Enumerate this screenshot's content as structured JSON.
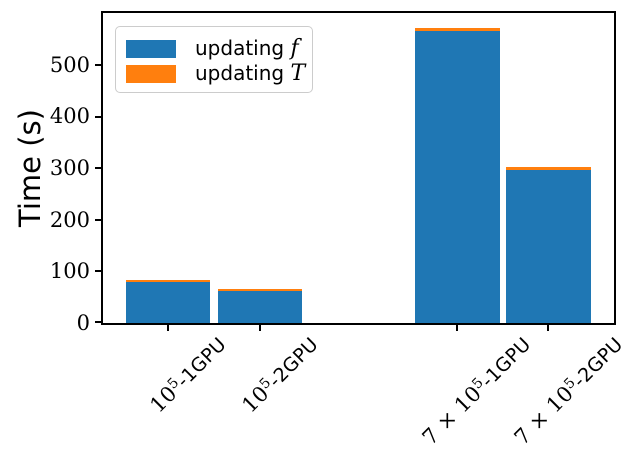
{
  "figure": {
    "background": "#ffffff",
    "axis_color": "#000000"
  },
  "chart_data": {
    "type": "bar",
    "stacked": true,
    "title": "",
    "xlabel": "",
    "ylabel": "Time (s)",
    "ylim": [
      0,
      600
    ],
    "yticks": [
      "0",
      "100",
      "200",
      "300",
      "400",
      "500"
    ],
    "grid": false,
    "legend_position": "upper left",
    "categories": [
      "10⁵-1GPU",
      "10⁵-2GPU",
      "7 × 10⁵-1GPU",
      "7 × 10⁵-2GPU"
    ],
    "categories_parts": [
      {
        "prefix": "",
        "base": "10",
        "sup": "5",
        "rest": "-1GPU"
      },
      {
        "prefix": "",
        "base": "10",
        "sup": "5",
        "rest": "-2GPU"
      },
      {
        "prefix": "7 × ",
        "base": "10",
        "sup": "5",
        "rest": "-1GPU"
      },
      {
        "prefix": "7 × ",
        "base": "10",
        "sup": "5",
        "rest": "-2GPU"
      }
    ],
    "series": [
      {
        "name": "updating f",
        "label_prefix": "updating ",
        "symbol": "f",
        "color": "#1f77b4",
        "values": [
          80,
          62,
          565,
          296
        ]
      },
      {
        "name": "updating T",
        "label_prefix": "updating ",
        "symbol": "T",
        "color": "#ff7f0e",
        "values": [
          4,
          4,
          6,
          6
        ]
      }
    ]
  }
}
